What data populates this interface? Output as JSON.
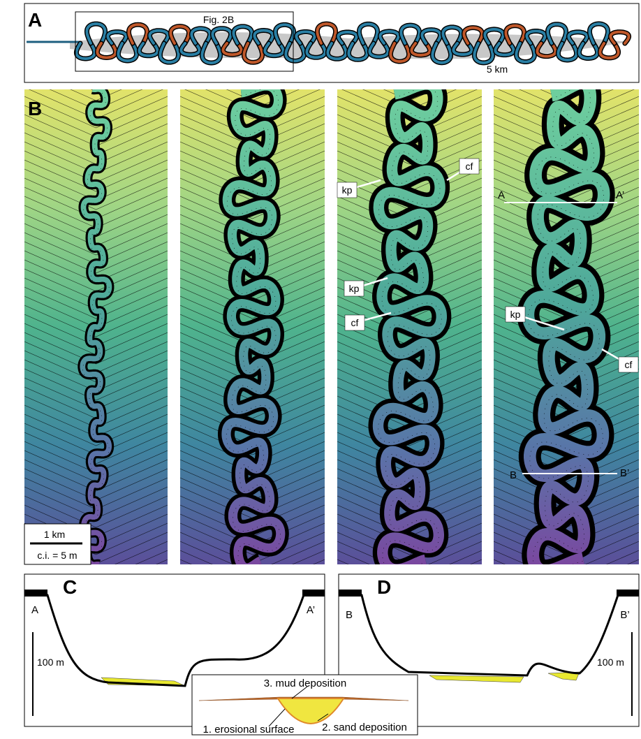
{
  "panel_a": {
    "label": "A",
    "inset_label": "Fig. 2B",
    "scale_label": "5 km"
  },
  "panel_b": {
    "label": "B",
    "scale_bar": "1 km",
    "contour_interval": "c.i. = 5 m",
    "annotations": [
      "kp",
      "cf",
      "kp",
      "cf",
      "kp",
      "cf"
    ],
    "sections": [
      "A",
      "A’",
      "B",
      "B’"
    ]
  },
  "panel_c": {
    "label": "C",
    "left_label": "A",
    "right_label": "A’",
    "scale_label": "100 m"
  },
  "panel_d": {
    "label": "D",
    "left_label": "B",
    "right_label": "B’",
    "scale_label": "100 m"
  },
  "legend": {
    "items": [
      "3. mud deposition",
      "1. erosional surface",
      "2. sand deposition"
    ]
  }
}
